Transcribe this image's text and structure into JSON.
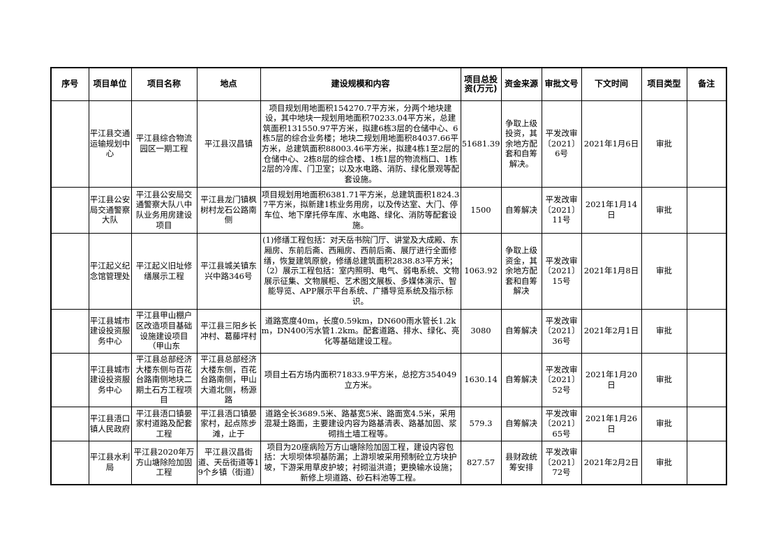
{
  "headers": [
    "序号",
    "项目单位",
    "项目名称",
    "地点",
    "建设规模和内容",
    "项目总投资(万元)",
    "资金来源",
    "审批文号",
    "下文时间",
    "项目类型",
    "备注"
  ],
  "rows": [
    {
      "no": "",
      "unit": "平江县交通运输规划中心",
      "name": "平江县综合物流园区一期工程",
      "location": "平江县汉昌镇",
      "content": "项目规划用地面积154270.7平方米，分两个地块建设，其中地块一规划用地面积70233.04平方米，总建筑面积131550.97平方米，拟建6栋3层的仓储中心、6栋5层的综合业务楼；地块二规划用地面积84037.66平方米，总建筑面积88003.46平方米，拟建4栋1至2层的仓储中心、2栋8层的综合楼、1栋1层的物流档口、1栋2层的冷库、门卫室；以及水电路、消防、绿化景观等配套设施。",
      "investment": "51681.39",
      "funding": "争取上级投资，其余地方配套和自筹解决。",
      "approval": "平发改审〔2021〕6号",
      "date": "2021年1月6日",
      "type": "审批",
      "remark": ""
    },
    {
      "no": "",
      "unit": "平江县公安局交通警察大队",
      "name": "平江县公安局交通警察大队八中队业务用房建设项目",
      "location": "平江县龙门镇枫树村龙石公路南侧",
      "content": "项目规划用地面积6381.71平方米，总建筑面积1824.37平方米，拟新建1栋业务用房，以及传达室、大门、停车位、地下摩托停车库、水电路、绿化、消防等配套设施。",
      "investment": "1500",
      "funding": "自筹解决",
      "approval": "平发改审〔2021〕11号",
      "date": "2021年1月14日",
      "type": "审批",
      "remark": ""
    },
    {
      "no": "",
      "unit": "平江起义纪念馆管理处",
      "name": "平江起义旧址修缮展示工程",
      "location": "平江县城关镇东兴中路346号",
      "content": "(1)修缮工程包括：对天岳书院门厅、讲堂及大成殿、东厢房、东前后斋、西厢房、西前后斋、展厅进行全面修缮，恢复建筑原貌，修缮总建筑面积2838.83平方米；（2）展示工程包括：室内照明、电气、弱电系统、文物展示征集、文物展柜、艺术图文展板、多媒体演示、智能导览、APP展示平台系统、广播导览系统及指示标识。",
      "investment": "1063.92",
      "funding": "争取上级资金，其余地方配套和自筹解决",
      "approval": "平发改审〔2021〕15号",
      "date": "2021年1月8日",
      "type": "审批",
      "remark": ""
    },
    {
      "no": "",
      "unit": "平江县城市建设投资服务中心",
      "name": "平江县甲山棚户区改造项目基础设施建设项目（甲山东",
      "location": "平江县三阳乡长冲村、葛藤坪村",
      "content": "道路宽度40m，长度0.59km，DN600雨水管长1.2km，DN400污水管1.2km。配套道路、排水、绿化、亮化等基础建设工程。",
      "investment": "3080",
      "funding": "自筹解决",
      "approval": "平发改审〔2021〕36号",
      "date": "2021年2月1日",
      "type": "审批",
      "remark": ""
    },
    {
      "no": "",
      "unit": "平江县城市建设投资服务中心",
      "name": "平江县总部经济大楼东侧与百花台路南侧地块二期土石方工程项目",
      "location": "平江县总部经济大楼东侧，百花台路南侧，甲山大道北侧，杨源路",
      "content": "项目土石方场内面积71833.9平方米，总挖方354049立方米。",
      "investment": "1630.14",
      "funding": "自筹解决",
      "approval": "平发改审〔2021〕52号",
      "date": "2021年1月20日",
      "type": "审批",
      "remark": ""
    },
    {
      "no": "",
      "unit": "平江县浯口镇人民政府",
      "name": "平江县浯口镇晏家村道路及配套工程",
      "location": "平江县浯口镇晏家村，起点陈步滩，止于",
      "content": "道路全长3689.5米、路基宽5米、路面宽4.5米，采用混凝土路面，主要建设内容为路基清表、路基加固、浆砌挡土墙工程等。",
      "investment": "579.3",
      "funding": "自筹解决",
      "approval": "平发改审〔2021〕65号",
      "date": "2021年1月26日",
      "type": "审批",
      "remark": ""
    },
    {
      "no": "",
      "unit": "平江县水利局",
      "name": "平江县2020年万方山塘除险加固工程",
      "location": "平江县汉昌街道、天岳街道等19个乡镇（街道）",
      "content": "项目为20座病险万方山塘除险加固工程，建设内容包括：大坝坝体坝基防漏；上游坝坡采用预制砼立方块护坡，下游采用草皮护坡；衬砌溢洪道；更换输水设施；新修上坝道路、砂石料池等工程。",
      "investment": "827.57",
      "funding": "县财政统筹安排",
      "approval": "平发改审〔2021〕72号",
      "date": "2021年2月2日",
      "type": "审批",
      "remark": ""
    }
  ]
}
